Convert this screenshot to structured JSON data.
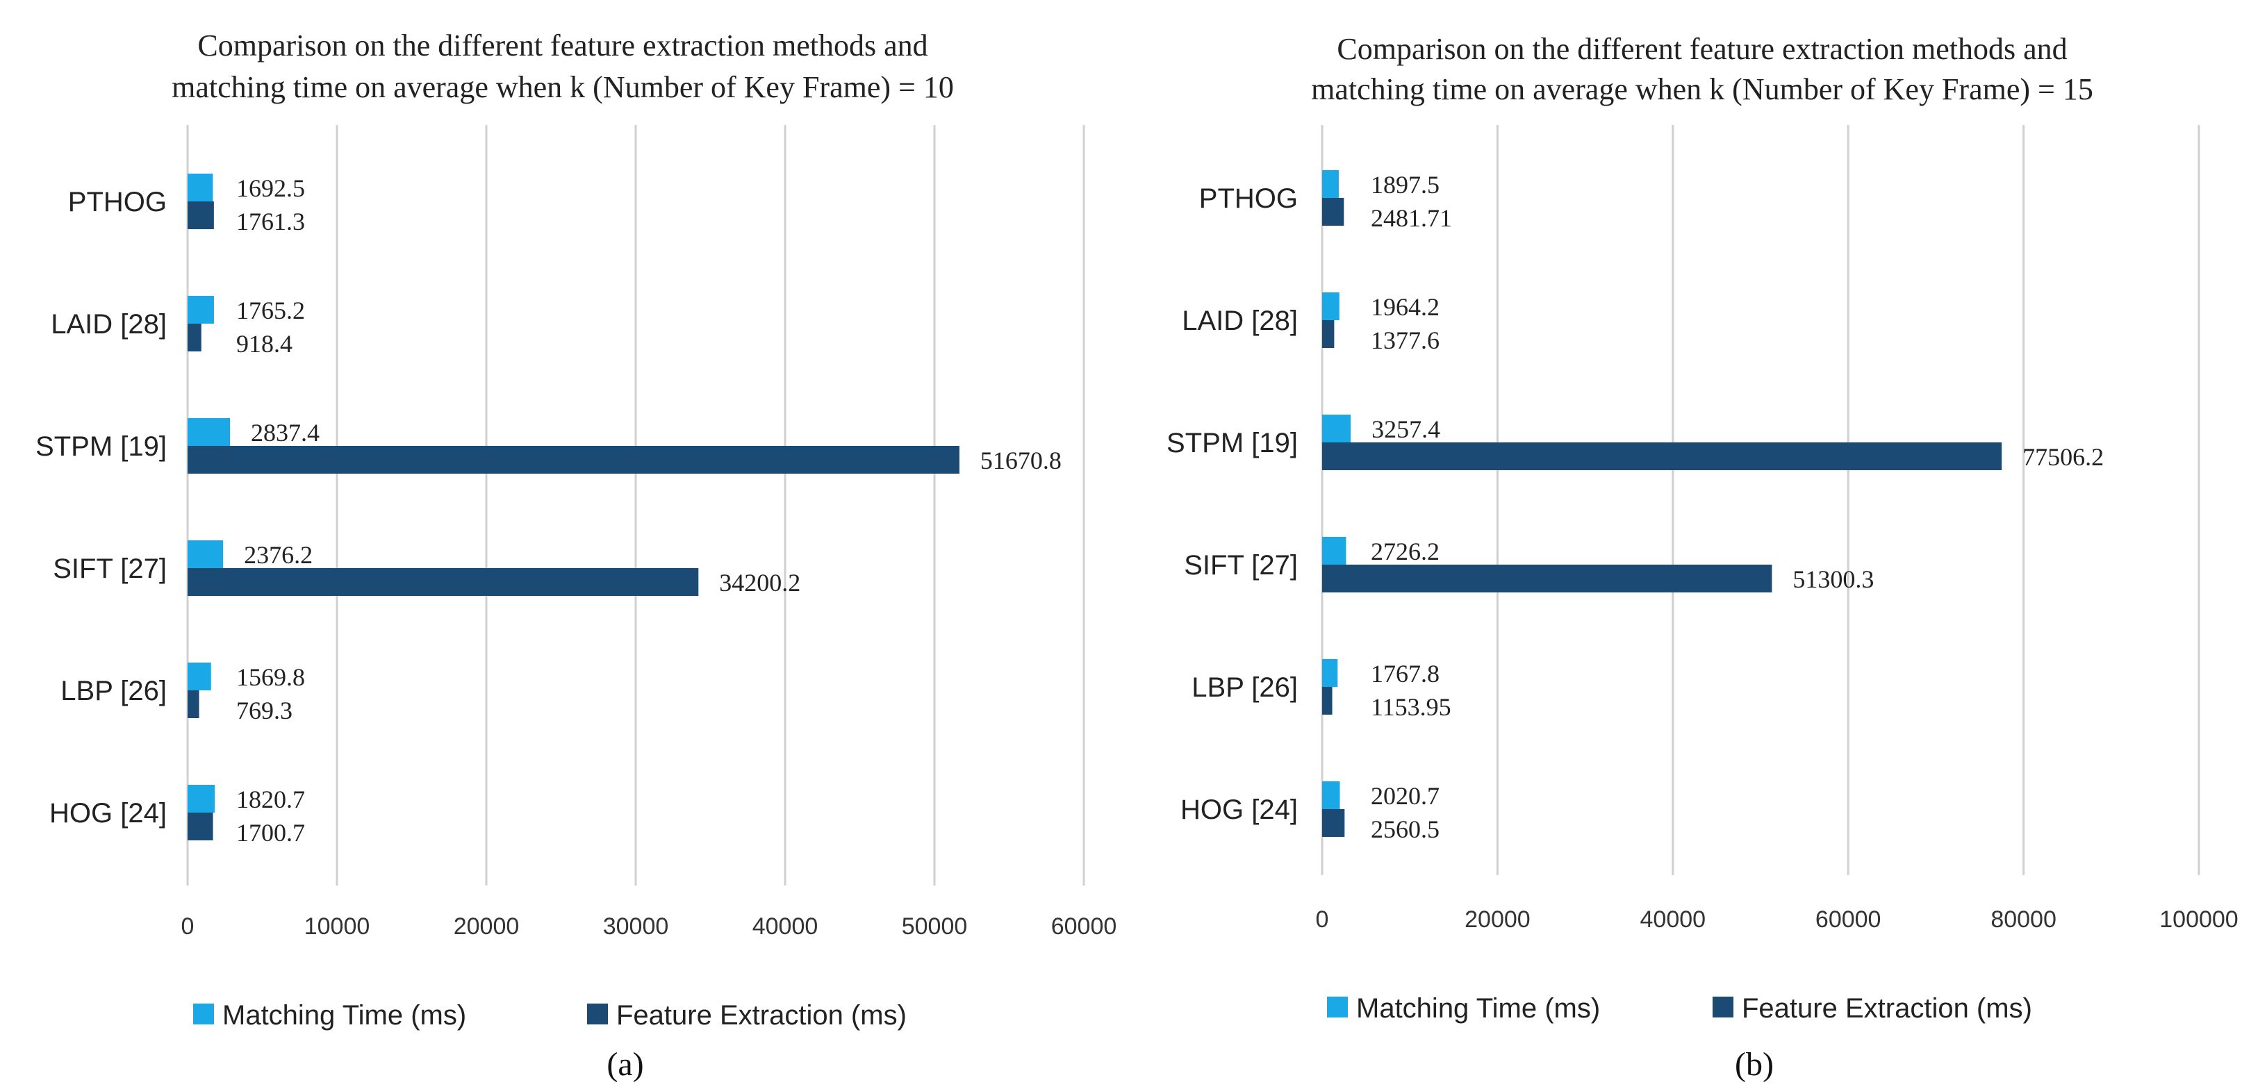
{
  "chart_data": [
    {
      "type": "bar",
      "orientation": "horizontal",
      "title_lines": [
        "Comparison on the different feature extraction methods and",
        "matching time on average when k (Number of Key Frame) = 10"
      ],
      "categories": [
        "PTHOG",
        "LAID [28]",
        "STPM [19]",
        "SIFT [27]",
        "LBP [26]",
        "HOG [24]"
      ],
      "series": [
        {
          "name": "Matching Time (ms)",
          "color": "#1aa8e6",
          "values": [
            1692.5,
            1765.2,
            2837.4,
            2376.2,
            1569.8,
            1820.7
          ],
          "labels": [
            "1692.5",
            "1765.2",
            "2837.4",
            "2376.2",
            "1569.8",
            "1820.7"
          ]
        },
        {
          "name": "Feature Extraction (ms)",
          "color": "#1b4a74",
          "values": [
            1761.3,
            918.4,
            51670.8,
            34200.2,
            769.3,
            1700.7
          ],
          "labels": [
            "1761.3",
            "918.4",
            "51670.8",
            "34200.2",
            "769.3",
            "1700.7"
          ]
        }
      ],
      "xlim": [
        0,
        60000
      ],
      "xticks": [
        "0",
        "10000",
        "20000",
        "30000",
        "40000",
        "50000",
        "60000"
      ],
      "grid": true,
      "legend": "bottom",
      "caption": "(a)"
    },
    {
      "type": "bar",
      "orientation": "horizontal",
      "title_lines": [
        "Comparison on the different feature extraction methods and",
        "matching time on average when k (Number of Key Frame) = 15"
      ],
      "categories": [
        "PTHOG",
        "LAID [28]",
        "STPM [19]",
        "SIFT [27]",
        "LBP [26]",
        "HOG [24]"
      ],
      "series": [
        {
          "name": "Matching Time (ms)",
          "color": "#1aa8e6",
          "values": [
            1897.5,
            1964.2,
            3257.4,
            2726.2,
            1767.8,
            2020.7
          ],
          "labels": [
            "1897.5",
            "1964.2",
            "3257.4",
            "2726.2",
            "1767.8",
            "2020.7"
          ]
        },
        {
          "name": "Feature Extraction (ms)",
          "color": "#1b4a74",
          "values": [
            2481.71,
            1377.6,
            77506.2,
            51300.3,
            1153.95,
            2560.5
          ],
          "labels": [
            "2481.71",
            "1377.6",
            "77506.2",
            "51300.3",
            "1153.95",
            "2560.5"
          ]
        }
      ],
      "xlim": [
        0,
        100000
      ],
      "xticks": [
        "0",
        "20000",
        "40000",
        "60000",
        "80000",
        "100000"
      ],
      "grid": true,
      "legend": "bottom",
      "caption": "(b)"
    }
  ]
}
